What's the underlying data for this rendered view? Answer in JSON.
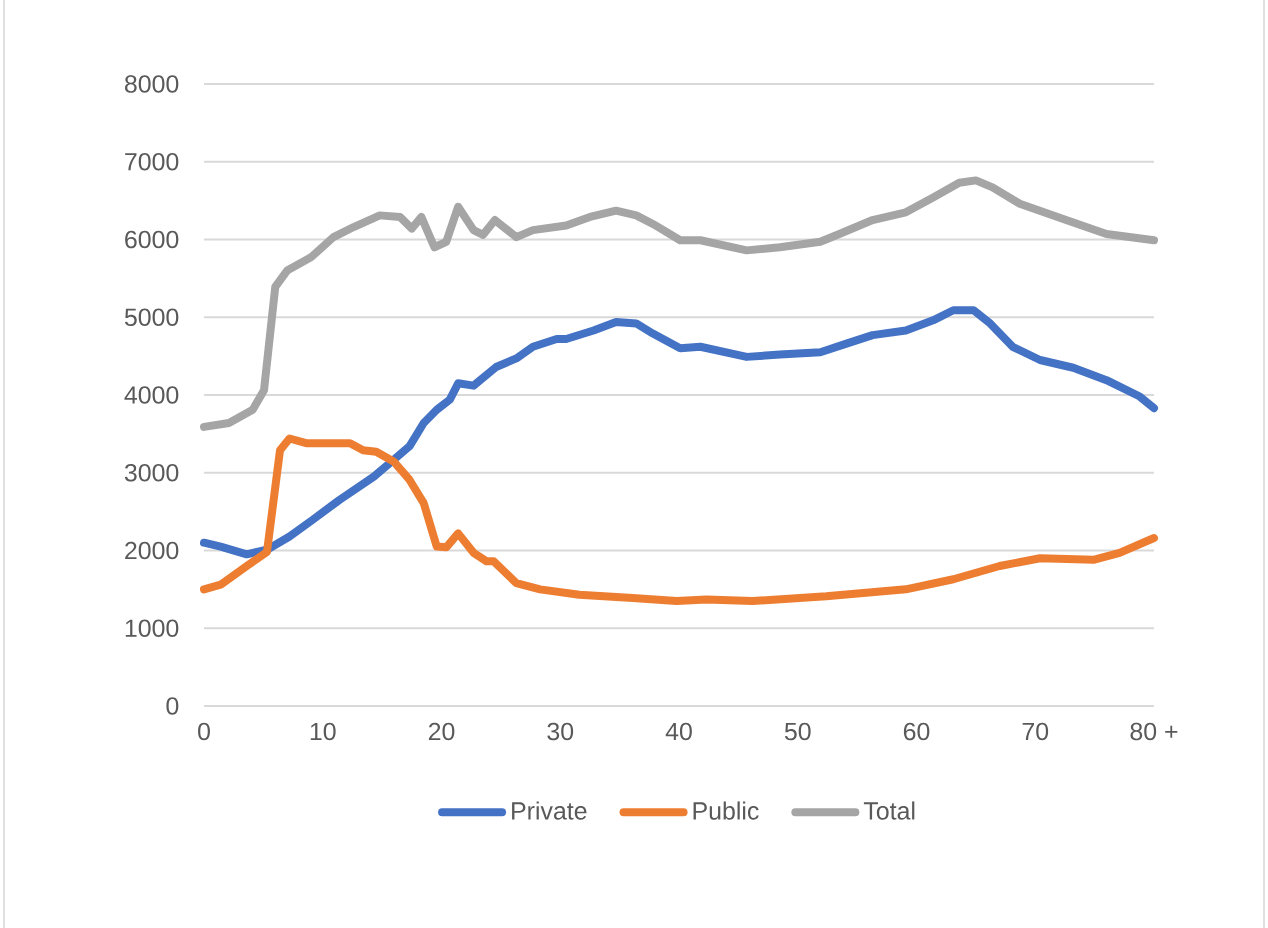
{
  "chart_data": {
    "type": "line",
    "xlim": [
      0,
      80
    ],
    "ylim": [
      0,
      8000
    ],
    "xticks": [
      0,
      10,
      20,
      30,
      40,
      50,
      60,
      70,
      {
        "value": 80,
        "label": "80 +"
      }
    ],
    "yticks": [
      0,
      1000,
      2000,
      3000,
      4000,
      5000,
      6000,
      7000,
      8000
    ],
    "grid": "y",
    "legend": "bottom",
    "line_style": "solid",
    "marker": "none",
    "series": [
      {
        "name": "Private",
        "color": "#4472c4",
        "x": [
          0,
          1.4,
          3.6,
          5.3,
          7.2,
          9.2,
          11.4,
          14.3,
          16,
          17.3,
          18.5,
          19.6,
          20.7,
          21.4,
          22.7,
          24.6,
          26.3,
          27.7,
          29.7,
          30.5,
          32.8,
          34.7,
          36.4,
          37.8,
          40.1,
          41.8,
          45.7,
          48.5,
          51.9,
          54.1,
          56.3,
          59.1,
          61.4,
          63.1,
          64.8,
          66.2,
          68.1,
          70.4,
          73.2,
          76,
          78.8,
          80
        ],
        "values": [
          2100,
          2050,
          1950,
          2010,
          2180,
          2400,
          2650,
          2950,
          3170,
          3340,
          3640,
          3810,
          3940,
          4150,
          4120,
          4360,
          4470,
          4620,
          4720,
          4720,
          4830,
          4940,
          4920,
          4790,
          4600,
          4620,
          4490,
          4520,
          4550,
          4660,
          4770,
          4830,
          4960,
          5090,
          5090,
          4920,
          4620,
          4450,
          4350,
          4190,
          3980,
          3830
        ]
      },
      {
        "name": "Public",
        "color": "#ed7d31",
        "x": [
          0,
          1.4,
          3.6,
          5.3,
          6.4,
          7.2,
          8.6,
          12.3,
          13.4,
          14.5,
          16,
          17.3,
          18.5,
          19.6,
          20.4,
          21.4,
          22.7,
          23.8,
          24.4,
          26.3,
          28.3,
          31.6,
          36.1,
          39.8,
          42.3,
          46.2,
          52.4,
          59.1,
          63.1,
          67,
          70.4,
          74.9,
          77.1,
          80
        ],
        "values": [
          1500,
          1560,
          1800,
          1980,
          3290,
          3440,
          3380,
          3380,
          3290,
          3270,
          3140,
          2910,
          2610,
          2050,
          2040,
          2220,
          1970,
          1860,
          1860,
          1580,
          1500,
          1430,
          1390,
          1350,
          1370,
          1350,
          1410,
          1500,
          1630,
          1800,
          1900,
          1880,
          1970,
          2160
        ]
      },
      {
        "name": "Total",
        "color": "#a5a5a5",
        "x": [
          0,
          2.1,
          4.1,
          5.05,
          6,
          7,
          9,
          10.9,
          12.6,
          14.8,
          16.5,
          17.5,
          18.3,
          19.4,
          20.4,
          21.4,
          22.7,
          23.5,
          24.5,
          26.3,
          27.7,
          30.5,
          32.5,
          34.7,
          36.4,
          37.8,
          40.1,
          41.8,
          45.7,
          48.5,
          51.9,
          53.5,
          56.3,
          59.1,
          61.4,
          63.6,
          65,
          66.4,
          68.7,
          72.6,
          76,
          80
        ],
        "values": [
          3590,
          3640,
          3810,
          4060,
          5390,
          5600,
          5770,
          6030,
          6160,
          6310,
          6290,
          6140,
          6290,
          5900,
          5970,
          6420,
          6120,
          6060,
          6250,
          6030,
          6120,
          6180,
          6290,
          6370,
          6310,
          6200,
          5990,
          5990,
          5860,
          5900,
          5970,
          6070,
          6250,
          6350,
          6540,
          6730,
          6760,
          6670,
          6460,
          6250,
          6070,
          5990
        ]
      }
    ]
  }
}
